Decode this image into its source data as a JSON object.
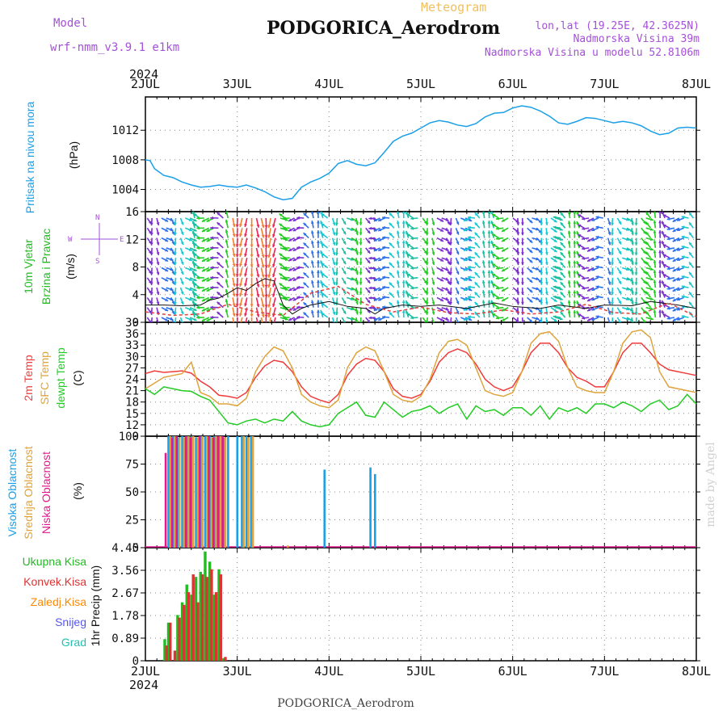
{
  "header": {
    "model_label": "Model",
    "model_name": "wrf-nmm_v3.9.1 e1km",
    "product": "Meteogram",
    "title": "PODGORICA_Aerodrom",
    "lonlat": "lon,lat (19.25E, 42.3625N)",
    "elevation": "Nadmorska Visina 39m",
    "model_elevation": "Nadmorska Visina u modelu 52.8106m"
  },
  "time_axis": {
    "year": "2024",
    "ticks": [
      "2JUL",
      "3JUL",
      "4JUL",
      "5JUL",
      "6JUL",
      "7JUL",
      "8JUL"
    ]
  },
  "footer": {
    "station": "PODGORICA_Aerodrom",
    "credit": "made by Angel"
  },
  "colors": {
    "pressure": "#1a9fe8",
    "temp2m": "#ef3b3b",
    "sfc_temp": "#dfa33b",
    "dewpt": "#22cc22",
    "high_cloud": "#1a9fe8",
    "mid_cloud": "#dfa33b",
    "low_cloud": "#e01a8c",
    "total_precip": "#22bb22",
    "conv_precip": "#dd3333",
    "frozen_precip": "#ff8800",
    "snow": "#5555ee",
    "hail": "#22c0b0",
    "wind_purple": "#7b2fd0",
    "wind_blue": "#2c6fe8",
    "wind_cyan": "#19c7d2",
    "wind_teal": "#19c0a0",
    "wind_green": "#22cc22",
    "wind_red": "#ee2255",
    "wind_orange": "#f08030"
  },
  "chart_data": [
    {
      "type": "line",
      "panel": "pressure",
      "ylabel": [
        "Pritisak na nivou mora",
        "(hPa)"
      ],
      "yticks": [
        1004,
        1008,
        1012
      ],
      "ylim": [
        1001,
        1016.5
      ],
      "x_unit": "days since 2JUL 00UTC",
      "series": [
        {
          "x": [
            0,
            0.05,
            0.1,
            0.2,
            0.3,
            0.4,
            0.5,
            0.6,
            0.7,
            0.8,
            0.9,
            1.0,
            1.1,
            1.2,
            1.3,
            1.4,
            1.5,
            1.6,
            1.7,
            1.8,
            1.9,
            2.0,
            2.1,
            2.2,
            2.3,
            2.4,
            2.5,
            2.6,
            2.7,
            2.8,
            2.9,
            3.0,
            3.1,
            3.2,
            3.3,
            3.4,
            3.5,
            3.6,
            3.7,
            3.8,
            3.9,
            4.0,
            4.1,
            4.2,
            4.3,
            4.4,
            4.5,
            4.6,
            4.7,
            4.8,
            4.9,
            5.0,
            5.1,
            5.2,
            5.3,
            5.4,
            5.5,
            5.6,
            5.7,
            5.8,
            5.9,
            6.0
          ],
          "values": [
            1008,
            1007.9,
            1006.8,
            1005.9,
            1005.6,
            1005.0,
            1004.6,
            1004.3,
            1004.4,
            1004.6,
            1004.4,
            1004.3,
            1004.6,
            1004.2,
            1003.7,
            1003.0,
            1002.6,
            1002.8,
            1004.3,
            1005.0,
            1005.5,
            1006.2,
            1007.5,
            1007.9,
            1007.4,
            1007.2,
            1007.6,
            1009.0,
            1010.5,
            1011.2,
            1011.6,
            1012.3,
            1013.0,
            1013.3,
            1013.1,
            1012.7,
            1012.5,
            1012.9,
            1013.8,
            1014.3,
            1014.4,
            1015.0,
            1015.3,
            1015.1,
            1014.6,
            1013.9,
            1013.0,
            1012.8,
            1013.2,
            1013.7,
            1013.6,
            1013.3,
            1013.0,
            1013.2,
            1013.0,
            1012.6,
            1011.9,
            1011.4,
            1011.6,
            1012.3,
            1012.4,
            1012.3
          ]
        }
      ]
    },
    {
      "type": "line",
      "panel": "wind",
      "ylabel": [
        "10m Vjetar",
        "Brzina i Pravac",
        "(m/s)"
      ],
      "compass": "N, E, S, W arrows",
      "yticks": [
        0,
        4,
        8,
        12,
        16
      ],
      "ylim": [
        0,
        16
      ],
      "series": [
        {
          "name": "speed",
          "x": [
            0,
            0.2,
            0.4,
            0.6,
            0.7,
            0.8,
            0.9,
            1.0,
            1.1,
            1.2,
            1.3,
            1.4,
            1.5,
            1.6,
            1.7,
            1.8,
            2.0,
            2.2,
            2.4,
            2.5,
            2.6,
            2.8,
            3.0,
            3.2,
            3.5,
            3.8,
            4.0,
            4.3,
            4.5,
            4.8,
            5.0,
            5.3,
            5.5,
            5.8,
            6.0
          ],
          "values": [
            2.5,
            2.5,
            2.4,
            2.5,
            3.2,
            3.5,
            4.2,
            5.0,
            4.6,
            5.6,
            6.3,
            6.0,
            2.5,
            1.2,
            2.0,
            2.5,
            3.0,
            2.3,
            2.0,
            1.2,
            2.0,
            2.5,
            2.3,
            2.5,
            2.0,
            2.8,
            2.3,
            2.0,
            2.5,
            2.0,
            2.5,
            2.4,
            3.0,
            2.5,
            2.0
          ]
        },
        {
          "name": "gust",
          "x": [
            0,
            0.3,
            0.6,
            0.9,
            1.2,
            1.5,
            1.8,
            2.1,
            2.4,
            2.7,
            3.0,
            3.3,
            3.6,
            3.9,
            4.2,
            4.5,
            4.8,
            5.1,
            5.4,
            5.7,
            6.0
          ],
          "values": [
            1.5,
            1.0,
            1.2,
            2.6,
            1.5,
            1.0,
            4.2,
            5.2,
            2.6,
            1.5,
            2.2,
            1.4,
            1.2,
            1.8,
            1.2,
            1.5,
            2.6,
            1.4,
            1.2,
            2.8,
            0.8
          ]
        }
      ]
    },
    {
      "type": "line",
      "panel": "temperature",
      "ylabel": [
        "2m Temp",
        "SFC Temp",
        "dewpt Temp",
        "(C)"
      ],
      "yticks": [
        9,
        12,
        15,
        18,
        21,
        24,
        27,
        30,
        33,
        36,
        39
      ],
      "ylim": [
        9,
        39
      ],
      "x": [
        0,
        0.1,
        0.2,
        0.3,
        0.4,
        0.5,
        0.6,
        0.7,
        0.8,
        0.9,
        1.0,
        1.1,
        1.2,
        1.3,
        1.4,
        1.5,
        1.6,
        1.7,
        1.8,
        1.9,
        2.0,
        2.1,
        2.2,
        2.3,
        2.4,
        2.5,
        2.6,
        2.7,
        2.8,
        2.9,
        3.0,
        3.1,
        3.2,
        3.3,
        3.4,
        3.5,
        3.6,
        3.7,
        3.8,
        3.9,
        4.0,
        4.1,
        4.2,
        4.3,
        4.4,
        4.5,
        4.6,
        4.7,
        4.8,
        4.9,
        5.0,
        5.1,
        5.2,
        5.3,
        5.4,
        5.5,
        5.6,
        5.7,
        5.8,
        5.9,
        6.0
      ],
      "series": [
        {
          "name": "2m Temp",
          "values": [
            25.5,
            26.2,
            25.8,
            26.0,
            26.2,
            25.6,
            23.5,
            22.0,
            19.8,
            19.5,
            19.0,
            20.5,
            24.5,
            27.5,
            29.0,
            28.5,
            26.0,
            22.0,
            19.5,
            18.5,
            17.8,
            20.0,
            25.0,
            28.0,
            29.5,
            29.0,
            26.0,
            21.5,
            19.5,
            19.0,
            20.0,
            23.5,
            28.5,
            31.0,
            32.0,
            31.0,
            28.0,
            24.0,
            22.0,
            21.0,
            22.0,
            26.0,
            31.0,
            33.5,
            33.5,
            31.0,
            27.0,
            24.5,
            23.5,
            22.0,
            22.0,
            26.0,
            31.0,
            33.5,
            33.5,
            31.0,
            28.0,
            26.5,
            26.0,
            25.5,
            25.0
          ]
        },
        {
          "name": "SFC Temp",
          "values": [
            21.5,
            23.0,
            24.5,
            25.0,
            25.5,
            28.5,
            20.5,
            19.5,
            17.5,
            17.5,
            17.0,
            19.0,
            26.0,
            30.0,
            32.5,
            31.5,
            27.0,
            20.0,
            18.0,
            17.0,
            16.5,
            18.5,
            27.0,
            31.0,
            32.5,
            31.5,
            26.0,
            20.0,
            18.5,
            18.0,
            19.5,
            24.0,
            31.0,
            34.0,
            34.5,
            33.0,
            27.0,
            21.0,
            20.0,
            19.5,
            20.5,
            26.0,
            33.5,
            36.0,
            36.5,
            34.0,
            27.0,
            22.0,
            21.0,
            20.5,
            20.5,
            26.0,
            33.5,
            36.5,
            37.0,
            35.0,
            26.0,
            22.0,
            21.5,
            21.0,
            20.5
          ]
        },
        {
          "name": "dewpt Temp",
          "values": [
            21.5,
            20.0,
            22.0,
            21.5,
            21.0,
            20.8,
            19.5,
            18.5,
            15.5,
            12.5,
            12.0,
            13.0,
            13.5,
            12.5,
            13.5,
            13.0,
            15.5,
            13.0,
            12.0,
            11.5,
            12.0,
            15.0,
            16.5,
            18.0,
            14.5,
            14.0,
            18.0,
            16.0,
            14.0,
            15.5,
            16.0,
            17.0,
            15.0,
            16.5,
            17.5,
            13.5,
            17.0,
            15.5,
            16.0,
            14.5,
            16.5,
            16.5,
            14.5,
            17.0,
            13.5,
            16.5,
            15.5,
            16.5,
            15.0,
            17.5,
            17.5,
            16.5,
            18.0,
            17.0,
            15.5,
            17.5,
            18.5,
            16.0,
            17.0,
            20.0,
            17.5
          ]
        }
      ]
    },
    {
      "type": "bar",
      "panel": "cloud",
      "ylabel": [
        "Visoka Oblacnost",
        "Srednja Oblacnost",
        "Niska Oblacnost",
        "(%)"
      ],
      "yticks": [
        0,
        25,
        50,
        75,
        100
      ],
      "ylim": [
        0,
        100
      ],
      "series": [
        {
          "name": "Visoka Oblacnost",
          "x": [
            0.25,
            0.3,
            0.35,
            0.4,
            0.45,
            0.5,
            0.55,
            0.6,
            0.65,
            0.7,
            0.75,
            0.8,
            0.85,
            0.9,
            1.0,
            1.05,
            1.1,
            1.15,
            1.95,
            2.45,
            2.5
          ],
          "values": [
            100,
            100,
            99,
            100,
            100,
            100,
            99,
            100,
            100,
            100,
            100,
            100,
            99,
            100,
            100,
            100,
            100,
            100,
            70,
            72,
            66
          ]
        },
        {
          "name": "Srednja Oblacnost",
          "x": [
            0.27,
            0.32,
            0.37,
            0.42,
            0.47,
            0.52,
            0.57,
            0.62,
            0.67,
            0.72,
            0.77,
            0.82,
            0.87,
            1.07,
            1.12,
            1.17,
            1.55
          ],
          "values": [
            100,
            100,
            99,
            99,
            100,
            100,
            99,
            100,
            100,
            99,
            100,
            100,
            99,
            100,
            99,
            100,
            2
          ]
        },
        {
          "name": "Niska Oblacnost",
          "x": [
            0.22,
            0.29,
            0.34,
            0.44,
            0.49,
            0.59,
            0.69,
            0.74,
            0.79,
            0.84
          ],
          "values": [
            85,
            99,
            100,
            100,
            99,
            100,
            100,
            99,
            100,
            100
          ]
        }
      ]
    },
    {
      "type": "bar",
      "panel": "precip",
      "ylabel": [
        "1hr Precip (mm)"
      ],
      "legend": [
        "Ukupna Kisa",
        "Konvek.Kisa",
        "Zaledj.Kisa",
        "Snijeg",
        "Grad"
      ],
      "yticks": [
        0,
        0.89,
        1.78,
        2.67,
        3.56,
        4.45
      ],
      "ylim": [
        0,
        4.45
      ],
      "series": [
        {
          "name": "Ukupna Kisa",
          "x": [
            0.21,
            0.25,
            0.35,
            0.4,
            0.45,
            0.5,
            0.55,
            0.6,
            0.65,
            0.7,
            0.75,
            0.8,
            0.85
          ],
          "values": [
            0.85,
            1.5,
            1.8,
            2.3,
            3.0,
            2.6,
            3.3,
            3.5,
            4.3,
            3.9,
            2.6,
            3.6,
            0.1
          ]
        },
        {
          "name": "Konvek.Kisa",
          "x": [
            0.23,
            0.27,
            0.32,
            0.37,
            0.42,
            0.47,
            0.52,
            0.57,
            0.62,
            0.67,
            0.72,
            0.77,
            0.82,
            0.87
          ],
          "values": [
            0.6,
            1.5,
            0.4,
            1.7,
            2.2,
            2.7,
            3.4,
            2.3,
            3.4,
            3.3,
            3.6,
            2.7,
            3.4,
            0.15
          ]
        }
      ]
    }
  ]
}
